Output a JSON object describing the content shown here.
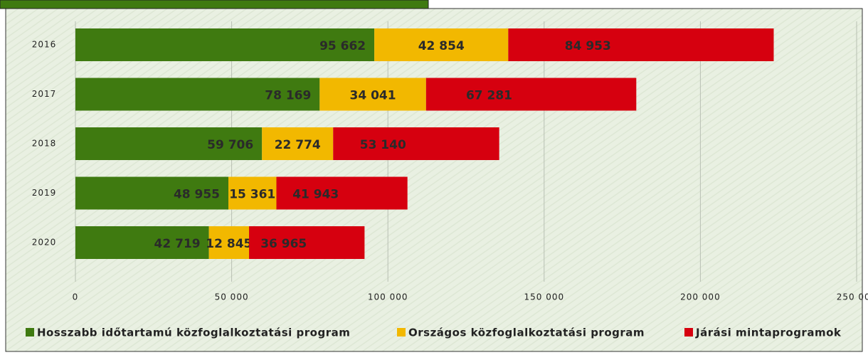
{
  "chart_data": {
    "type": "stacked-bar-horizontal",
    "categories": [
      "2016",
      "2017",
      "2018",
      "2019",
      "2020"
    ],
    "series": [
      {
        "name": "Hosszabb időtartamú közfoglalkoztatási program",
        "color": "#3f7a10",
        "values": [
          95662,
          78169,
          59706,
          48955,
          42719
        ],
        "value_labels": [
          "95 662",
          "78 169",
          "59 706",
          "48 955",
          "42 719"
        ]
      },
      {
        "name": "Országos közfoglalkoztatási program",
        "color": "#f2b800",
        "values": [
          42854,
          34041,
          22774,
          15361,
          12845
        ],
        "value_labels": [
          "42 854",
          "34 041",
          "22 774",
          "15 361",
          "12 845"
        ]
      },
      {
        "name": "Járási mintaprogramok",
        "color": "#d6000f",
        "values": [
          84953,
          67281,
          53140,
          41943,
          36965
        ],
        "value_labels": [
          "84 953",
          "67 281",
          "53 140",
          "41 943",
          "36 965"
        ]
      }
    ],
    "xlim": [
      0,
      250000
    ],
    "xticks": [
      0,
      {
        "value": 50000,
        "label": "50 000"
      },
      {
        "value": 100000,
        "label": "100 000"
      },
      {
        "value": 150000,
        "label": "150 000"
      },
      {
        "value": 200000,
        "label": "200 000"
      },
      {
        "value": 250000,
        "label": "250 000"
      }
    ],
    "grid": true,
    "legend": "bottom"
  }
}
